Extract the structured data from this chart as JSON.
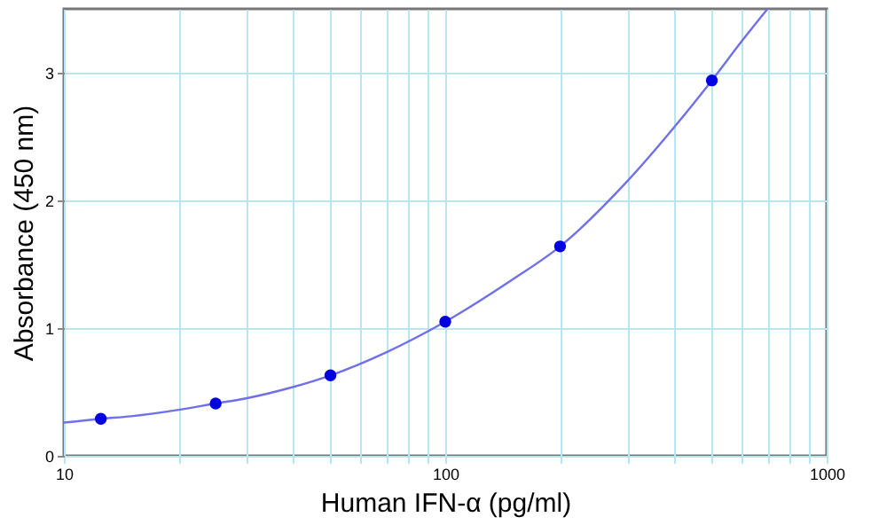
{
  "chart_data": {
    "type": "scatter",
    "xlabel": "Human IFN-α (pg/ml)",
    "ylabel": "Absorbance (450 nm)",
    "log": "x",
    "grid": true,
    "marker": "circle",
    "xlim": [
      10,
      1000
    ],
    "ylim": [
      0,
      3.5
    ],
    "xticks": [
      10,
      {
        "value": 20,
        "label": null
      },
      {
        "value": 30,
        "label": null
      },
      {
        "value": 40,
        "label": null
      },
      {
        "value": 50,
        "label": null
      },
      {
        "value": 60,
        "label": null
      },
      {
        "value": 70,
        "label": null
      },
      {
        "value": 80,
        "label": null
      },
      {
        "value": 90,
        "label": null
      },
      100,
      {
        "value": 200,
        "label": null
      },
      {
        "value": 300,
        "label": null
      },
      {
        "value": 400,
        "label": null
      },
      {
        "value": 500,
        "label": null
      },
      {
        "value": 600,
        "label": null
      },
      {
        "value": 700,
        "label": null
      },
      {
        "value": 800,
        "label": null
      },
      {
        "value": 900,
        "label": null
      },
      1000
    ],
    "yticks": [
      0,
      1,
      2,
      3
    ],
    "series": [
      {
        "type": "line",
        "color": "#7070e8",
        "marker": "none",
        "x": [
          10,
          12.5,
          15,
          20,
          25,
          30,
          40,
          50,
          70,
          100,
          150,
          200,
          300,
          400,
          500,
          600,
          700
        ],
        "values": [
          0.26,
          0.29,
          0.31,
          0.36,
          0.41,
          0.45,
          0.54,
          0.63,
          0.81,
          1.05,
          1.38,
          1.64,
          2.15,
          2.58,
          2.94,
          3.25,
          3.5
        ]
      },
      {
        "type": "scatter",
        "color": "#0000e0",
        "x": [
          12.5,
          25,
          50,
          100,
          200,
          500
        ],
        "values": [
          0.29,
          0.41,
          0.63,
          1.05,
          1.64,
          2.94
        ]
      }
    ]
  }
}
